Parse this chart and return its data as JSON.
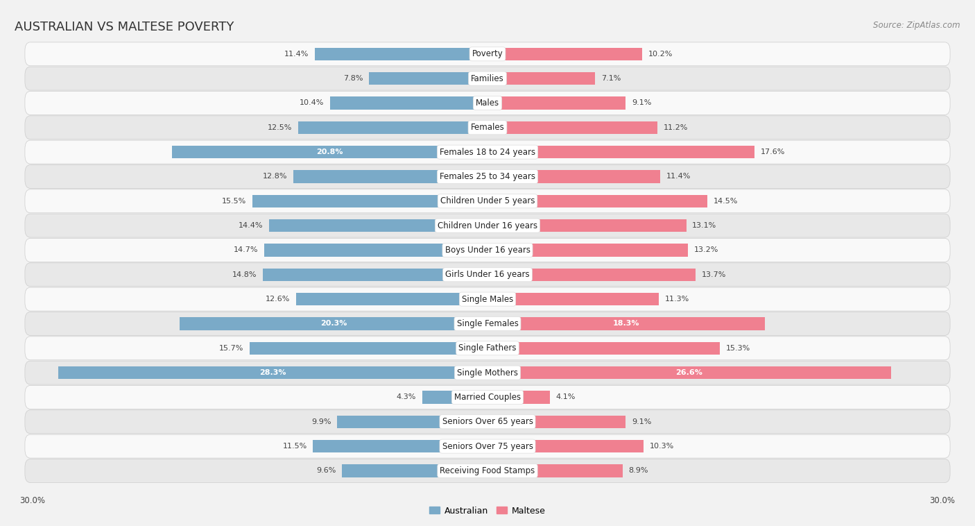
{
  "title": "AUSTRALIAN VS MALTESE POVERTY",
  "source": "Source: ZipAtlas.com",
  "categories": [
    "Poverty",
    "Families",
    "Males",
    "Females",
    "Females 18 to 24 years",
    "Females 25 to 34 years",
    "Children Under 5 years",
    "Children Under 16 years",
    "Boys Under 16 years",
    "Girls Under 16 years",
    "Single Males",
    "Single Females",
    "Single Fathers",
    "Single Mothers",
    "Married Couples",
    "Seniors Over 65 years",
    "Seniors Over 75 years",
    "Receiving Food Stamps"
  ],
  "australian": [
    11.4,
    7.8,
    10.4,
    12.5,
    20.8,
    12.8,
    15.5,
    14.4,
    14.7,
    14.8,
    12.6,
    20.3,
    15.7,
    28.3,
    4.3,
    9.9,
    11.5,
    9.6
  ],
  "maltese": [
    10.2,
    7.1,
    9.1,
    11.2,
    17.6,
    11.4,
    14.5,
    13.1,
    13.2,
    13.7,
    11.3,
    18.3,
    15.3,
    26.6,
    4.1,
    9.1,
    10.3,
    8.9
  ],
  "australian_color": "#7aaac8",
  "maltese_color": "#f08090",
  "background_color": "#f2f2f2",
  "row_bg_color": "#e8e8e8",
  "row_light_color": "#f9f9f9",
  "max_value": 30.0,
  "title_fontsize": 13,
  "label_fontsize": 8.5,
  "value_fontsize": 8,
  "legend_fontsize": 9,
  "source_fontsize": 8.5,
  "inside_label_threshold": 18.0
}
